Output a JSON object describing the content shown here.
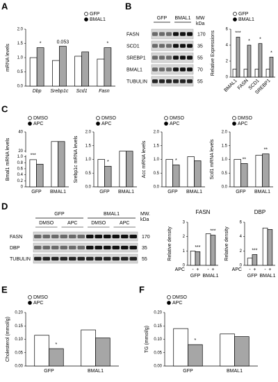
{
  "panel_labels": [
    "A",
    "B",
    "C",
    "D",
    "E",
    "F"
  ],
  "blots": [
    {
      "groups": [
        "GFP",
        "BMAL1"
      ],
      "mw_label": [
        "MW",
        "kDa"
      ],
      "rows": [
        {
          "label": "FASN",
          "mw": 170
        },
        {
          "label": "SCD1",
          "mw": 35
        },
        {
          "label": "SREBP1",
          "mw": 55
        },
        {
          "label": "BMAL1",
          "mw": 70
        },
        {
          "label": "TUBULIN",
          "mw": 55
        }
      ]
    },
    {
      "groups": [
        "GFP",
        "BMAL1"
      ],
      "treatments": [
        "DMSO",
        "APC",
        "DMSO",
        "APC"
      ],
      "mw_label": [
        "MW.",
        "kDa"
      ],
      "rows": [
        {
          "label": "FASN",
          "mw": 170
        },
        {
          "label": "DBP",
          "mw": 35
        },
        {
          "label": "TUBULIN",
          "mw": 55
        }
      ]
    }
  ],
  "chart_data": [
    {
      "type": "bar",
      "ylabel": "mRNA levels",
      "categories": [
        "Dbp",
        "Srebp1c",
        "Scd1",
        "Fasn"
      ],
      "italic_categories": true,
      "series": [
        {
          "name": "GFP",
          "color": "#ffffff",
          "values": [
            1.0,
            0.9,
            1.05,
            0.95
          ]
        },
        {
          "name": "BMAL1",
          "color": "#a6a6a6",
          "values": [
            1.35,
            1.4,
            1.2,
            1.35
          ]
        }
      ],
      "ylim": [
        0,
        2.0
      ],
      "yticks": [
        {
          "value": 0,
          "label": "0.0"
        },
        0.5,
        {
          "value": 1,
          "label": "1.0"
        },
        1.5,
        {
          "value": 2,
          "label": "2.0"
        }
      ],
      "legend": "top-right",
      "annotations": [
        "*",
        "0.053",
        "*"
      ]
    },
    {
      "type": "bar",
      "ylabel": "Relative Expressions",
      "categories": [
        "BMAL1",
        "FASN",
        "SCD1",
        "SREBP1"
      ],
      "rotate_labels": true,
      "series": [
        {
          "name": "GFP",
          "color": "#ffffff",
          "values": [
            1.0,
            1.0,
            1.0,
            1.0
          ]
        },
        {
          "name": "BMAL1",
          "color": "#a6a6a6",
          "values": [
            5.0,
            4.0,
            4.2,
            2.5
          ]
        }
      ],
      "ylim": [
        0,
        6
      ],
      "yticks": [
        0,
        2,
        4,
        6
      ],
      "legend": "top-left",
      "annotations": [
        "***",
        "*",
        "*",
        "*"
      ]
    },
    {
      "type": "bar",
      "ylabel": "Bmal1 mRNA levels",
      "categories": [
        "GFP",
        "BMAL1"
      ],
      "series": [
        {
          "name": "DMSO",
          "color": "#ffffff",
          "values": [
            0.9,
            30
          ]
        },
        {
          "name": "APC",
          "color": "#a6a6a6",
          "values": [
            0.75,
            30
          ]
        }
      ],
      "ylim": [
        0,
        40
      ],
      "ybreak": [
        1.0,
        20
      ],
      "yticks": [
        0,
        0.2,
        0.4,
        0.6,
        0.8,
        {
          "value": 1,
          "label": "1.0"
        },
        20,
        40
      ],
      "legend": "top-left",
      "annotations": [
        "***"
      ]
    },
    {
      "type": "bar",
      "ylabel": "Srebp1c mRNA levels",
      "categories": [
        "GFP",
        "BMAL1"
      ],
      "series": [
        {
          "name": "DMSO",
          "color": "#ffffff",
          "values": [
            1.0,
            1.3
          ]
        },
        {
          "name": "APC",
          "color": "#a6a6a6",
          "values": [
            0.75,
            1.3
          ]
        }
      ],
      "ylim": [
        0,
        2.0
      ],
      "yticks": [
        {
          "value": 0,
          "label": "0.0"
        },
        0.5,
        {
          "value": 1,
          "label": "1.0"
        },
        1.5,
        {
          "value": 2,
          "label": "2.0"
        }
      ],
      "legend": "top-left",
      "annotations": [
        "*"
      ]
    },
    {
      "type": "bar",
      "ylabel": "Acc mRNA levels",
      "categories": [
        "GFP",
        "BMAL1"
      ],
      "series": [
        {
          "name": "DMSO",
          "color": "#ffffff",
          "values": [
            1.0,
            1.1
          ]
        },
        {
          "name": "APC",
          "color": "#a6a6a6",
          "values": [
            0.8,
            0.95
          ]
        }
      ],
      "ylim": [
        0,
        2.0
      ],
      "yticks": [
        {
          "value": 0,
          "label": "0.0"
        },
        0.5,
        {
          "value": 1,
          "label": "1.0"
        },
        1.5,
        {
          "value": 2,
          "label": "2.0"
        }
      ],
      "legend": "top-left",
      "annotations": [
        "*"
      ]
    },
    {
      "type": "bar",
      "ylabel": "Scd1 mRNA levels",
      "categories": [
        "GFP",
        "BMAL1"
      ],
      "series": [
        {
          "name": "DMSO",
          "color": "#ffffff",
          "values": [
            1.0,
            1.15
          ]
        },
        {
          "name": "APC",
          "color": "#a6a6a6",
          "values": [
            0.85,
            1.2
          ]
        }
      ],
      "ylim": [
        0,
        2.0
      ],
      "yticks": [
        {
          "value": 0,
          "label": "0.0"
        },
        0.5,
        {
          "value": 1,
          "label": "1.0"
        },
        1.5,
        {
          "value": 2,
          "label": "2.0"
        }
      ],
      "legend": "top-left",
      "annotations": [
        "**",
        "**"
      ]
    },
    {
      "type": "bar",
      "title": "FASN",
      "ylabel": "Relative density",
      "categories": [
        "GFP",
        "BMAL1"
      ],
      "series_row_label": "APC",
      "series": [
        {
          "name": "-",
          "color": "#ffffff",
          "values": [
            1.0,
            2.2
          ]
        },
        {
          "name": "+",
          "color": "#a6a6a6",
          "values": [
            0.95,
            2.1
          ]
        }
      ],
      "ylim": [
        0,
        3
      ],
      "yticks": [
        0,
        1,
        2,
        3
      ],
      "annotations": [
        "***",
        "***"
      ]
    },
    {
      "type": "bar",
      "title": "DBP",
      "ylabel": "Relative density",
      "categories": [
        "GFP",
        "BMAL1"
      ],
      "series_row_label": "APC",
      "series": [
        {
          "name": "-",
          "color": "#ffffff",
          "values": [
            1.0,
            5.2
          ]
        },
        {
          "name": "+",
          "color": "#a6a6a6",
          "values": [
            1.5,
            5.0
          ]
        }
      ],
      "ylim": [
        0,
        6
      ],
      "yticks": [
        0,
        2,
        4,
        6
      ],
      "annotations": [
        "***"
      ]
    },
    {
      "type": "bar",
      "ylabel": "Cholesterol (mmol/g)",
      "categories": [
        "GFP",
        "BMAL1"
      ],
      "series": [
        {
          "name": "DMSO",
          "color": "#ffffff",
          "values": [
            0.115,
            0.135
          ]
        },
        {
          "name": "APC",
          "color": "#a6a6a6",
          "values": [
            0.065,
            0.105
          ]
        }
      ],
      "ylim": [
        0,
        0.2
      ],
      "yticks": [
        {
          "value": 0,
          "label": "0.00"
        },
        0.05,
        {
          "value": 0.1,
          "label": "0.10"
        },
        0.15,
        {
          "value": 0.2,
          "label": "0.20"
        }
      ],
      "legend": "top-left",
      "annotations": [
        "*"
      ]
    },
    {
      "type": "bar",
      "ylabel": "TG (mmol/g)",
      "categories": [
        "GFP",
        "BMAL1"
      ],
      "series": [
        {
          "name": "DMSO",
          "color": "#ffffff",
          "values": [
            0.14,
            0.12
          ]
        },
        {
          "name": "APC",
          "color": "#a6a6a6",
          "values": [
            0.08,
            0.11
          ]
        }
      ],
      "ylim": [
        0,
        0.2
      ],
      "yticks": [
        {
          "value": 0,
          "label": "0.00"
        },
        0.05,
        {
          "value": 0.1,
          "label": "0.10"
        },
        0.15,
        {
          "value": 0.2,
          "label": "0.20"
        }
      ],
      "legend": "top-left",
      "annotations": [
        "*"
      ]
    }
  ]
}
